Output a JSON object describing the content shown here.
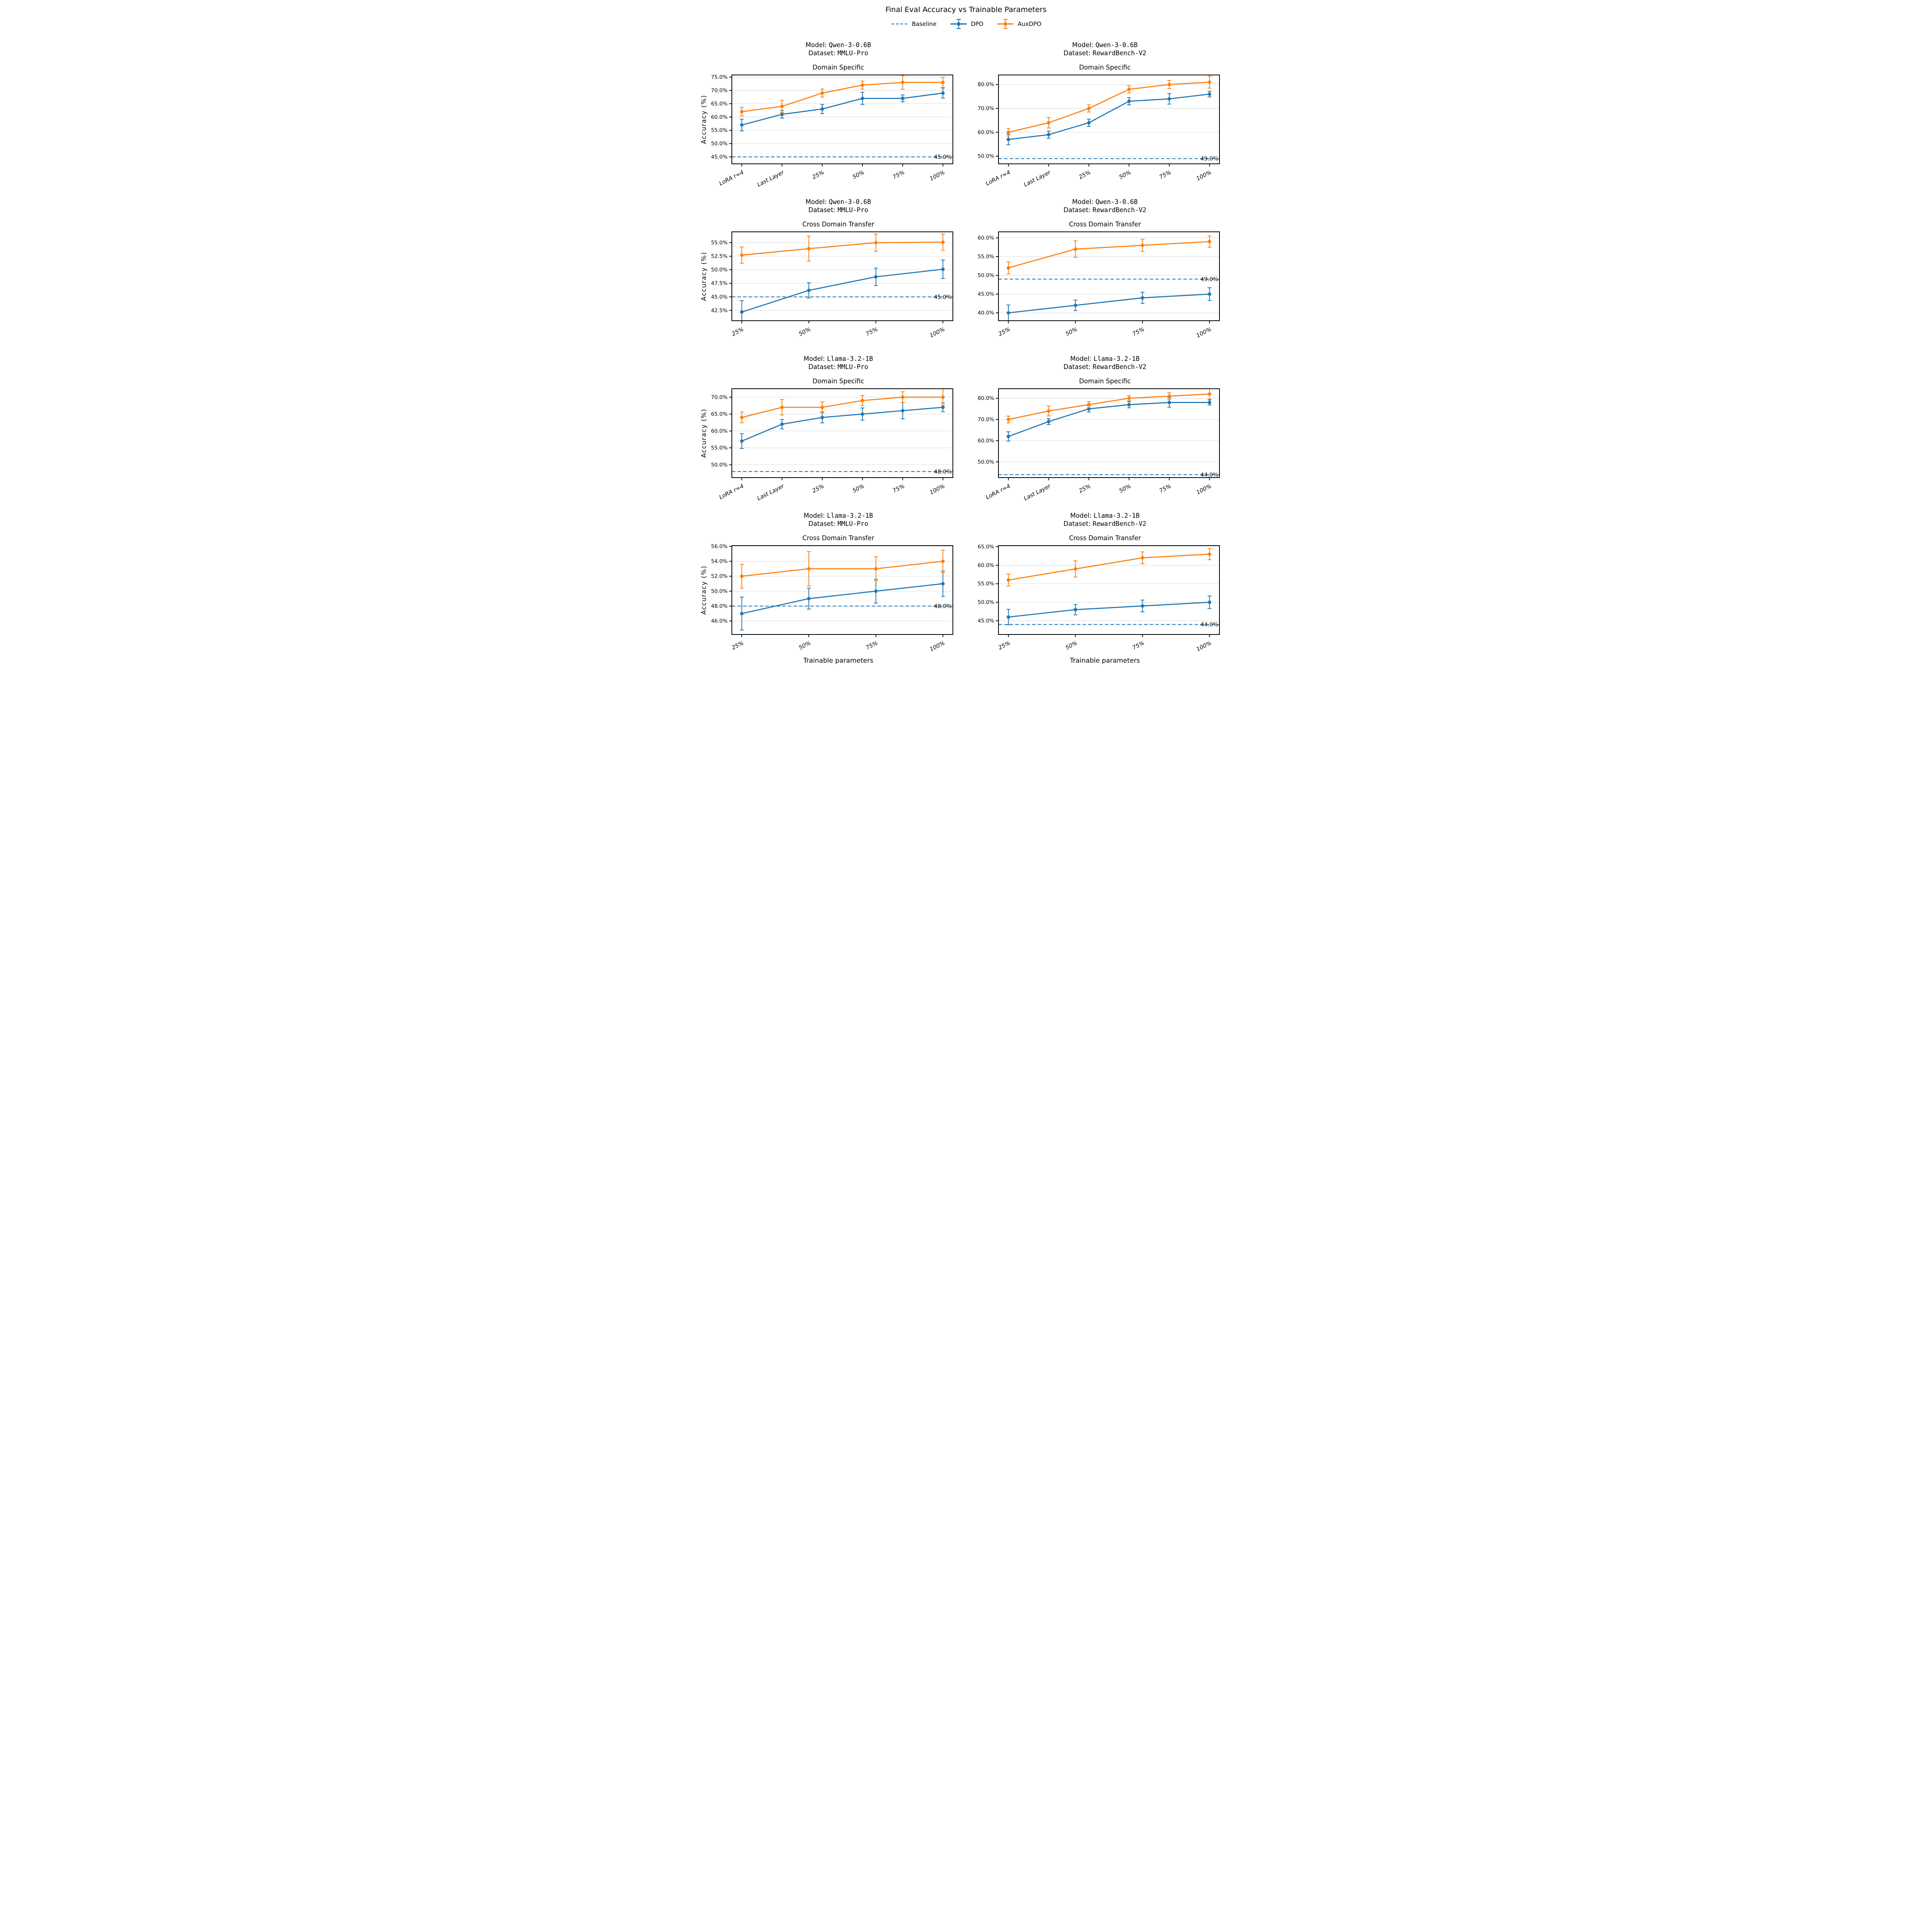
{
  "figure": {
    "title": "Final Eval Accuracy vs Trainable Parameters",
    "x_axis_label": "Trainable parameters",
    "y_axis_label": "Accuracy (%)",
    "legend": [
      {
        "label": "Baseline"
      },
      {
        "label": "DPO"
      },
      {
        "label": "AuxDPO"
      }
    ]
  },
  "labels": {
    "model_prefix": "Model: ",
    "dataset_prefix": "Dataset: "
  },
  "colors": {
    "dpo": "#1f77b4",
    "auxdpo": "#ff7f0e",
    "baseline": "#3a86c0",
    "grid": "#e0e0e0",
    "spine": "#000000"
  },
  "chart_data": [
    {
      "type": "line",
      "model": "Qwen-3-0.6B",
      "dataset": "MMLU-Pro",
      "axes_title": "Domain Specific",
      "categories": [
        "LoRA r=4",
        "Last Layer",
        "25%",
        "50%",
        "75%",
        "100%"
      ],
      "ylim": [
        42.4,
        75.8
      ],
      "ytick_values": [
        45,
        50,
        55,
        60,
        65,
        70,
        75
      ],
      "ytick_labels": [
        "45.0%",
        "50.0%",
        "55.0%",
        "60.0%",
        "65.0%",
        "70.0%",
        "75.0%"
      ],
      "baseline": {
        "value": 45.0,
        "label": "45.0%"
      },
      "series": [
        {
          "name": "DPO",
          "color": "#1f77b4",
          "values": [
            57,
            61,
            63,
            67,
            67,
            69
          ],
          "errors": [
            2.2,
            1.4,
            1.7,
            2.3,
            1.3,
            1.9
          ]
        },
        {
          "name": "AuxDPO",
          "color": "#ff7f0e",
          "values": [
            62,
            64,
            69,
            72,
            73,
            73
          ],
          "errors": [
            1.6,
            2.3,
            1.5,
            1.5,
            2.6,
            1.9
          ]
        }
      ],
      "show_y_label": true,
      "show_x_label": false
    },
    {
      "type": "line",
      "model": "Qwen-3-0.6B",
      "dataset": "RewardBench-V2",
      "axes_title": "Domain Specific",
      "categories": [
        "LoRA r=4",
        "Last Layer",
        "25%",
        "50%",
        "75%",
        "100%"
      ],
      "ylim": [
        46.8,
        84.0
      ],
      "ytick_values": [
        50,
        60,
        70,
        80
      ],
      "ytick_labels": [
        "50.0%",
        "60.0%",
        "70.0%",
        "80.0%"
      ],
      "baseline": {
        "value": 49.0,
        "label": "49.0%"
      },
      "series": [
        {
          "name": "DPO",
          "color": "#1f77b4",
          "values": [
            57,
            59,
            64,
            73,
            74,
            76
          ],
          "errors": [
            2.2,
            1.5,
            1.5,
            1.5,
            2.2,
            1.2
          ]
        },
        {
          "name": "AuxDPO",
          "color": "#ff7f0e",
          "values": [
            60,
            64,
            70,
            78,
            80,
            81
          ],
          "errors": [
            1.5,
            2.2,
            1.5,
            1.5,
            1.7,
            2.5
          ]
        }
      ],
      "show_y_label": false,
      "show_x_label": false
    },
    {
      "type": "line",
      "model": "Qwen-3-0.6B",
      "dataset": "MMLU-Pro",
      "axes_title": "Cross Domain Transfer",
      "categories": [
        "25%",
        "50%",
        "75%",
        "100%"
      ],
      "ylim": [
        40.6,
        57.0
      ],
      "ytick_values": [
        42.5,
        45.0,
        47.5,
        50.0,
        52.5,
        55.0
      ],
      "ytick_labels": [
        "42.5%",
        "45.0%",
        "47.5%",
        "50.0%",
        "52.5%",
        "55.0%"
      ],
      "baseline": {
        "value": 45.0,
        "label": "45.0%"
      },
      "series": [
        {
          "name": "DPO",
          "color": "#1f77b4",
          "values": [
            42.2,
            46.2,
            48.7,
            50.1
          ],
          "errors": [
            2.1,
            1.4,
            1.6,
            1.7
          ]
        },
        {
          "name": "AuxDPO",
          "color": "#ff7f0e",
          "values": [
            52.7,
            53.9,
            55.0,
            55.1
          ],
          "errors": [
            1.5,
            2.3,
            1.6,
            1.5
          ]
        }
      ],
      "show_y_label": true,
      "show_x_label": false
    },
    {
      "type": "line",
      "model": "Qwen-3-0.6B",
      "dataset": "RewardBench-V2",
      "axes_title": "Cross Domain Transfer",
      "categories": [
        "25%",
        "50%",
        "75%",
        "100%"
      ],
      "ylim": [
        37.9,
        61.6
      ],
      "ytick_values": [
        40,
        45,
        50,
        55,
        60
      ],
      "ytick_labels": [
        "40.0%",
        "45.0%",
        "50.0%",
        "55.0%",
        "60.0%"
      ],
      "baseline": {
        "value": 49.0,
        "label": "49.0%"
      },
      "series": [
        {
          "name": "DPO",
          "color": "#1f77b4",
          "values": [
            40,
            42,
            44,
            45
          ],
          "errors": [
            2.1,
            1.4,
            1.5,
            1.7
          ]
        },
        {
          "name": "AuxDPO",
          "color": "#ff7f0e",
          "values": [
            52,
            57,
            58,
            59
          ],
          "errors": [
            1.6,
            2.2,
            1.6,
            1.5
          ]
        }
      ],
      "show_y_label": false,
      "show_x_label": false
    },
    {
      "type": "line",
      "model": "Llama-3.2-1B",
      "dataset": "MMLU-Pro",
      "axes_title": "Domain Specific",
      "categories": [
        "LoRA r=4",
        "Last Layer",
        "25%",
        "50%",
        "75%",
        "100%"
      ],
      "ylim": [
        46.2,
        72.5
      ],
      "ytick_values": [
        50,
        55,
        60,
        65,
        70
      ],
      "ytick_labels": [
        "50.0%",
        "55.0%",
        "60.0%",
        "65.0%",
        "70.0%"
      ],
      "baseline": {
        "value": 48.0,
        "label": "48.0%"
      },
      "series": [
        {
          "name": "DPO",
          "color": "#1f77b4",
          "values": [
            57,
            62,
            64,
            65,
            66,
            67
          ],
          "errors": [
            2.2,
            1.4,
            1.6,
            1.8,
            2.4,
            1.3
          ]
        },
        {
          "name": "AuxDPO",
          "color": "#ff7f0e",
          "values": [
            64,
            67,
            67,
            69,
            70,
            70
          ],
          "errors": [
            1.6,
            2.3,
            1.6,
            1.5,
            1.6,
            2.5
          ]
        }
      ],
      "show_y_label": true,
      "show_x_label": false
    },
    {
      "type": "line",
      "model": "Llama-3.2-1B",
      "dataset": "RewardBench-V2",
      "axes_title": "Domain Specific",
      "categories": [
        "LoRA r=4",
        "Last Layer",
        "25%",
        "50%",
        "75%",
        "100%"
      ],
      "ylim": [
        42.6,
        84.5
      ],
      "ytick_values": [
        50,
        60,
        70,
        80
      ],
      "ytick_labels": [
        "50.0%",
        "60.0%",
        "70.0%",
        "80.0%"
      ],
      "baseline": {
        "value": 44.0,
        "label": "44.0%"
      },
      "series": [
        {
          "name": "DPO",
          "color": "#1f77b4",
          "values": [
            62,
            69,
            75,
            77,
            78,
            78
          ],
          "errors": [
            2.2,
            1.4,
            1.5,
            1.5,
            2.2,
            1.2
          ]
        },
        {
          "name": "AuxDPO",
          "color": "#ff7f0e",
          "values": [
            70,
            74,
            77,
            80,
            81,
            82
          ],
          "errors": [
            1.6,
            2.3,
            1.4,
            1.2,
            1.6,
            2.5
          ]
        }
      ],
      "show_y_label": false,
      "show_x_label": false
    },
    {
      "type": "line",
      "model": "Llama-3.2-1B",
      "dataset": "MMLU-Pro",
      "axes_title": "Cross Domain Transfer",
      "categories": [
        "25%",
        "50%",
        "75%",
        "100%"
      ],
      "ylim": [
        44.2,
        56.1
      ],
      "ytick_values": [
        46,
        48,
        50,
        52,
        54,
        56
      ],
      "ytick_labels": [
        "46.0%",
        "48.0%",
        "50.0%",
        "52.0%",
        "54.0%",
        "56.0%"
      ],
      "baseline": {
        "value": 48.0,
        "label": "48.0%"
      },
      "series": [
        {
          "name": "DPO",
          "color": "#1f77b4",
          "values": [
            47,
            49,
            50,
            51
          ],
          "errors": [
            2.2,
            1.4,
            1.6,
            1.7
          ]
        },
        {
          "name": "AuxDPO",
          "color": "#ff7f0e",
          "values": [
            52,
            53,
            53,
            54
          ],
          "errors": [
            1.6,
            2.3,
            1.6,
            1.5
          ]
        }
      ],
      "show_y_label": true,
      "show_x_label": true
    },
    {
      "type": "line",
      "model": "Llama-3.2-1B",
      "dataset": "RewardBench-V2",
      "axes_title": "Cross Domain Transfer",
      "categories": [
        "25%",
        "50%",
        "75%",
        "100%"
      ],
      "ylim": [
        41.3,
        65.3
      ],
      "ytick_values": [
        45,
        50,
        55,
        60,
        65
      ],
      "ytick_labels": [
        "45.0%",
        "50.0%",
        "55.0%",
        "60.0%",
        "65.0%"
      ],
      "baseline": {
        "value": 44.0,
        "label": "44.0%"
      },
      "series": [
        {
          "name": "DPO",
          "color": "#1f77b4",
          "values": [
            46,
            48,
            49,
            50
          ],
          "errors": [
            2.1,
            1.4,
            1.6,
            1.7
          ]
        },
        {
          "name": "AuxDPO",
          "color": "#ff7f0e",
          "values": [
            56,
            59,
            62,
            63
          ],
          "errors": [
            1.6,
            2.2,
            1.6,
            1.5
          ]
        }
      ],
      "show_y_label": false,
      "show_x_label": true
    }
  ]
}
